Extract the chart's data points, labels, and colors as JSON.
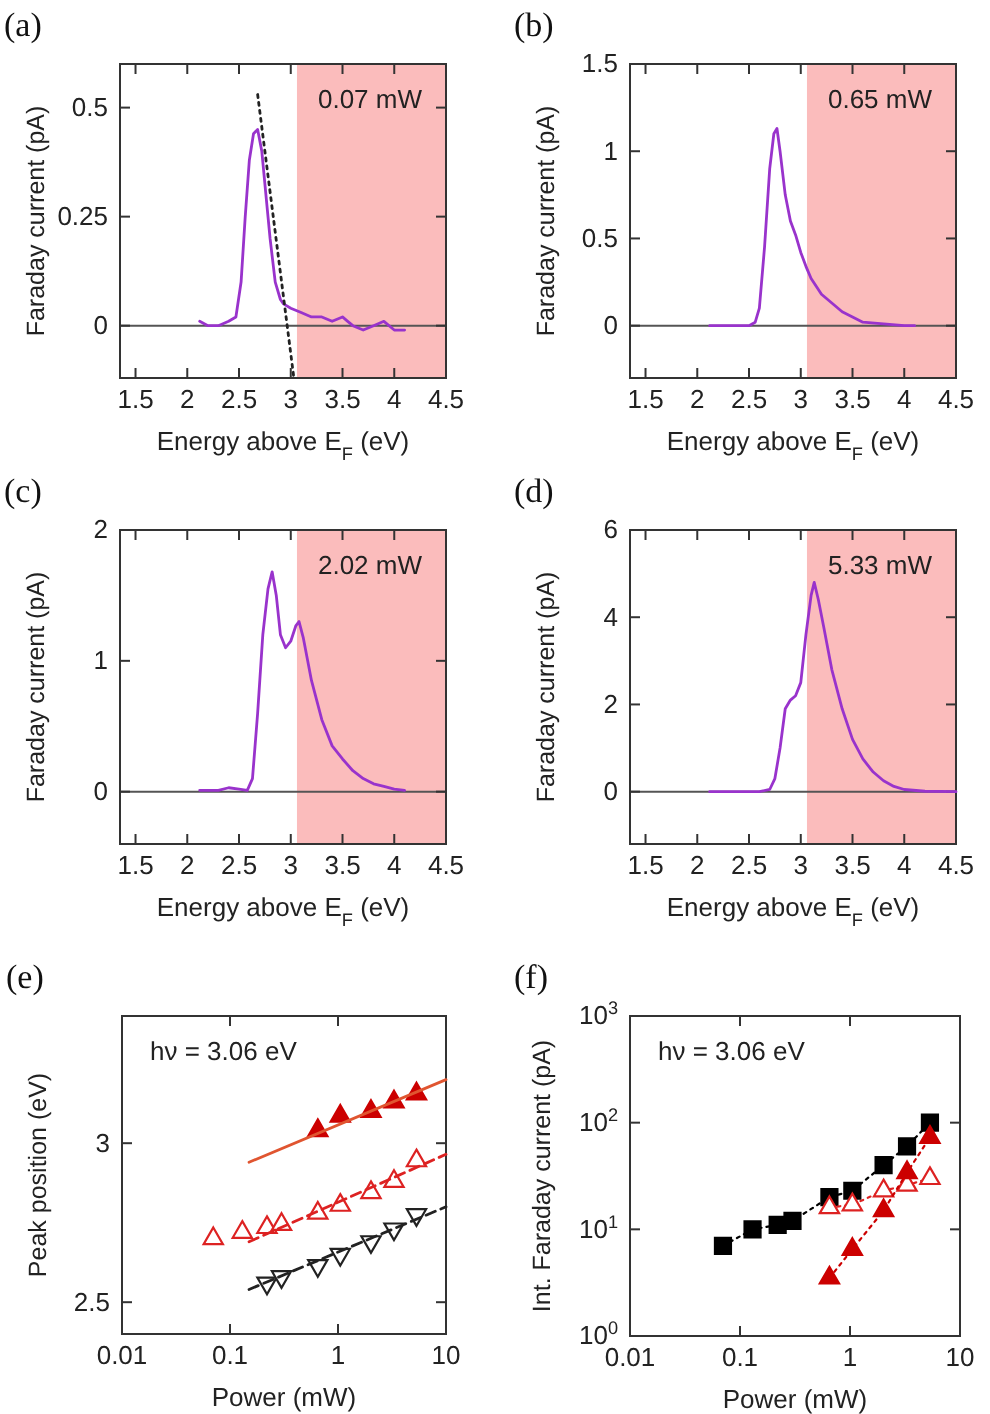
{
  "chart_data": [
    {
      "type": "line",
      "title": "(a)",
      "xlabel": "Energy above E$_{F}$ (eV)",
      "ylabel": "Faraday current (pA)",
      "xlim": [
        1.35,
        4.5
      ],
      "ylim": [
        -0.12,
        0.6
      ],
      "xticks": [
        1.5,
        2,
        2.5,
        3,
        3.5,
        4,
        4.5
      ],
      "yticks": [
        0,
        0.25,
        0.5
      ],
      "annotations": [
        "0.07 mW"
      ],
      "bands": [
        {
          "axis": "x",
          "from": 3.06,
          "to": 4.5,
          "color": "#fbbcbc"
        }
      ],
      "ref_lines": [
        {
          "axis": "y",
          "value": 0,
          "color": "#555555"
        }
      ],
      "series": [
        {
          "color": "#9933cc",
          "x": [
            2.12,
            2.2,
            2.3,
            2.4,
            2.47,
            2.52,
            2.56,
            2.6,
            2.64,
            2.68,
            2.72,
            2.76,
            2.8,
            2.85,
            2.9,
            2.93,
            3.0,
            3.1,
            3.2,
            3.3,
            3.4,
            3.5,
            3.55,
            3.6,
            3.7,
            3.8,
            3.9,
            4.0,
            4.1
          ],
          "values": [
            0.01,
            0.0,
            0.0,
            0.01,
            0.02,
            0.1,
            0.25,
            0.38,
            0.44,
            0.45,
            0.4,
            0.3,
            0.2,
            0.1,
            0.06,
            0.05,
            0.04,
            0.03,
            0.02,
            0.02,
            0.01,
            0.02,
            0.01,
            0.0,
            -0.01,
            0.0,
            0.01,
            -0.01,
            -0.01
          ]
        },
        {
          "type": "line",
          "color": "#222222",
          "line_style": "dotted",
          "x": [
            2.68,
            3.03
          ],
          "values": [
            0.53,
            -0.12
          ]
        }
      ]
    },
    {
      "type": "line",
      "title": "(b)",
      "xlabel": "Energy above E$_{F}$ (eV)",
      "ylabel": "Faraday current (pA)",
      "xlim": [
        1.35,
        4.5
      ],
      "ylim": [
        -0.3,
        1.5
      ],
      "xticks": [
        1.5,
        2,
        2.5,
        3,
        3.5,
        4,
        4.5
      ],
      "yticks": [
        0,
        0.5,
        1,
        1.5
      ],
      "annotations": [
        "0.65 mW"
      ],
      "bands": [
        {
          "axis": "x",
          "from": 3.06,
          "to": 4.5,
          "color": "#fbbcbc"
        }
      ],
      "ref_lines": [
        {
          "axis": "y",
          "value": 0,
          "color": "#555555"
        }
      ],
      "series": [
        {
          "color": "#9933cc",
          "x": [
            2.12,
            2.3,
            2.5,
            2.56,
            2.6,
            2.65,
            2.7,
            2.74,
            2.77,
            2.8,
            2.85,
            2.9,
            2.95,
            3.0,
            3.05,
            3.1,
            3.2,
            3.3,
            3.4,
            3.5,
            3.6,
            3.8,
            4.0,
            4.1
          ],
          "values": [
            0.0,
            0.0,
            0.0,
            0.02,
            0.1,
            0.45,
            0.9,
            1.1,
            1.13,
            1.0,
            0.75,
            0.6,
            0.52,
            0.42,
            0.34,
            0.27,
            0.18,
            0.13,
            0.08,
            0.05,
            0.02,
            0.01,
            0.0,
            0.0
          ]
        }
      ]
    },
    {
      "type": "line",
      "title": "(c)",
      "xlabel": "Energy above E$_{F}$ (eV)",
      "ylabel": "Faraday current (pA)",
      "xlim": [
        1.35,
        4.5
      ],
      "ylim": [
        -0.4,
        2
      ],
      "xticks": [
        1.5,
        2,
        2.5,
        3,
        3.5,
        4,
        4.5
      ],
      "yticks": [
        0,
        1,
        2
      ],
      "annotations": [
        "2.02 mW"
      ],
      "bands": [
        {
          "axis": "x",
          "from": 3.06,
          "to": 4.5,
          "color": "#fbbcbc"
        }
      ],
      "ref_lines": [
        {
          "axis": "y",
          "value": 0,
          "color": "#555555"
        }
      ],
      "series": [
        {
          "color": "#9933cc",
          "x": [
            2.12,
            2.3,
            2.4,
            2.5,
            2.58,
            2.63,
            2.68,
            2.73,
            2.78,
            2.82,
            2.86,
            2.9,
            2.95,
            3.0,
            3.05,
            3.08,
            3.12,
            3.2,
            3.3,
            3.4,
            3.5,
            3.6,
            3.7,
            3.8,
            3.9,
            4.0,
            4.1
          ],
          "values": [
            0.01,
            0.01,
            0.03,
            0.02,
            0.01,
            0.1,
            0.6,
            1.2,
            1.55,
            1.68,
            1.5,
            1.2,
            1.1,
            1.15,
            1.27,
            1.3,
            1.18,
            0.85,
            0.55,
            0.35,
            0.25,
            0.16,
            0.1,
            0.06,
            0.04,
            0.02,
            0.01
          ]
        }
      ]
    },
    {
      "type": "line",
      "title": "(d)",
      "xlabel": "Energy above E$_{F}$ (eV)",
      "ylabel": "Faraday current (pA)",
      "xlim": [
        1.35,
        4.5
      ],
      "ylim": [
        -1.2,
        6
      ],
      "xticks": [
        1.5,
        2,
        2.5,
        3,
        3.5,
        4,
        4.5
      ],
      "yticks": [
        0,
        2,
        4,
        6
      ],
      "annotations": [
        "5.33 mW"
      ],
      "bands": [
        {
          "axis": "x",
          "from": 3.06,
          "to": 4.5,
          "color": "#fbbcbc"
        }
      ],
      "ref_lines": [
        {
          "axis": "y",
          "value": 0,
          "color": "#555555"
        }
      ],
      "series": [
        {
          "color": "#9933cc",
          "x": [
            2.12,
            2.4,
            2.6,
            2.7,
            2.75,
            2.8,
            2.85,
            2.9,
            2.95,
            3.0,
            3.05,
            3.1,
            3.13,
            3.17,
            3.22,
            3.3,
            3.4,
            3.5,
            3.6,
            3.7,
            3.8,
            3.9,
            4.0,
            4.2,
            4.5
          ],
          "values": [
            0.0,
            0.0,
            0.0,
            0.05,
            0.3,
            1.0,
            1.9,
            2.1,
            2.2,
            2.5,
            3.6,
            4.5,
            4.8,
            4.4,
            3.8,
            2.8,
            1.9,
            1.2,
            0.75,
            0.45,
            0.25,
            0.12,
            0.05,
            0.01,
            0.0
          ]
        }
      ]
    },
    {
      "type": "scatter",
      "title": "(e)",
      "xlabel": "Power (mW)",
      "ylabel": "Peak position (eV)",
      "log": "x",
      "xlim": [
        0.01,
        10
      ],
      "ylim": [
        2.4,
        3.4
      ],
      "xticks": [
        0.01,
        0.1,
        1,
        10
      ],
      "yticks": [
        2.5,
        3
      ],
      "annotations": [
        "hν = 3.06 eV"
      ],
      "series": [
        {
          "color": "#cc0000",
          "marker": "triangle",
          "x": [
            0.65,
            1.05,
            2.02,
            3.3,
            5.33
          ],
          "values": [
            3.04,
            3.085,
            3.1,
            3.13,
            3.155
          ]
        },
        {
          "color": "#dd2222",
          "marker": "triangle-open",
          "x": [
            0.07,
            0.13,
            0.22,
            0.3,
            0.65,
            1.05,
            2.02,
            3.3,
            5.33
          ],
          "values": [
            2.7,
            2.72,
            2.735,
            2.745,
            2.78,
            2.805,
            2.845,
            2.88,
            2.945
          ]
        },
        {
          "color": "#222222",
          "marker": "triangle-down-open",
          "x": [
            0.22,
            0.3,
            0.65,
            1.05,
            2.02,
            3.3,
            5.33
          ],
          "values": [
            2.56,
            2.58,
            2.615,
            2.65,
            2.69,
            2.73,
            2.775
          ]
        },
        {
          "type": "line",
          "color": "#e05530",
          "line_style": "solid",
          "x": [
            0.15,
            10
          ],
          "values": [
            2.94,
            3.2
          ]
        },
        {
          "type": "line",
          "color": "#dd2222",
          "line_style": "dashed",
          "x": [
            0.15,
            10
          ],
          "values": [
            2.69,
            2.965
          ]
        },
        {
          "type": "line",
          "color": "#222222",
          "line_style": "dashed",
          "x": [
            0.15,
            10
          ],
          "values": [
            2.54,
            2.8
          ]
        }
      ]
    },
    {
      "type": "line",
      "title": "(f)",
      "xlabel": "Power (mW)",
      "ylabel": "Int. Faraday current (pA)",
      "log": "xy",
      "xlim": [
        0.01,
        10
      ],
      "ylim": [
        1,
        1000
      ],
      "xticks": [
        0.01,
        0.1,
        1,
        10
      ],
      "yticks": [
        {
          "value": 1,
          "label": "10$^{0}$"
        },
        {
          "value": 10,
          "label": "10$^{1}$"
        },
        {
          "value": 100,
          "label": "10$^{2}$"
        },
        {
          "value": 1000,
          "label": "10$^{3}$"
        }
      ],
      "annotations": [
        "hν = 3.06 eV"
      ],
      "line_style": "dotted",
      "series": [
        {
          "color": "#000000",
          "marker": "square",
          "x": [
            0.07,
            0.13,
            0.22,
            0.3,
            0.65,
            1.05,
            2.02,
            3.3,
            5.33
          ],
          "values": [
            7,
            10,
            11,
            12,
            20,
            23,
            40,
            60,
            100
          ]
        },
        {
          "color": "#dd2222",
          "marker": "triangle-open",
          "x": [
            0.65,
            1.05,
            2.02,
            3.3,
            5.33
          ],
          "values": [
            16,
            17,
            23,
            26,
            30
          ]
        },
        {
          "color": "#cc0000",
          "marker": "triangle",
          "x": [
            0.65,
            1.05,
            2.02,
            3.3,
            5.33
          ],
          "values": [
            3.5,
            6.5,
            15,
            34,
            73
          ]
        }
      ]
    }
  ]
}
